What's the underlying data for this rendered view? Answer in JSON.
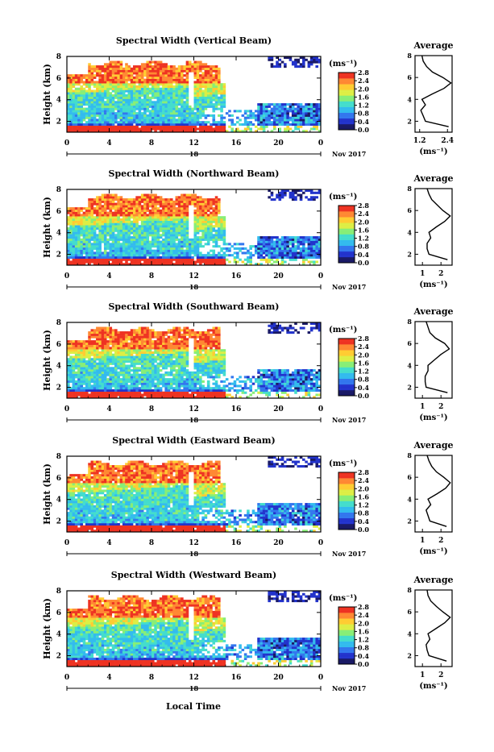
{
  "figure": {
    "xlabel": "Local Time",
    "date_label": "Nov 2017",
    "day_marker": "18",
    "ylabel": "Height (km)",
    "colorbar_unit": "(ms⁻¹)",
    "avg_title": "Average",
    "avg_unit": "(ms⁻¹)"
  },
  "colormap": {
    "name": "jet",
    "stops": [
      "#1a1a66",
      "#2233cc",
      "#3377ee",
      "#33bbee",
      "#44ddcc",
      "#88ee77",
      "#ddee44",
      "#ffcc33",
      "#ff8833",
      "#ee3322"
    ]
  },
  "chart_data": [
    {
      "type": "heatmap",
      "title": "Spectral Width (Vertical Beam)",
      "x_ticks": [
        "0",
        "4",
        "8",
        "12",
        "16",
        "20",
        "0"
      ],
      "y_ticks": [
        "2",
        "4",
        "6",
        "8"
      ],
      "xlim_hours": [
        0,
        24
      ],
      "ylim_km": [
        1,
        8
      ],
      "colorbar_ticks": [
        "0.0",
        "0.4",
        "0.8",
        "1.2",
        "1.6",
        "2.0",
        "2.4",
        "2.8"
      ],
      "clim": [
        0,
        2.8
      ],
      "profile_xticks": [
        "1.2",
        "2.4"
      ],
      "profile_xlim": [
        1.0,
        2.6
      ],
      "profile": {
        "height_km": [
          1.5,
          2.0,
          2.5,
          3.0,
          3.5,
          4.0,
          4.5,
          5.0,
          5.5,
          6.0,
          6.5,
          7.0,
          7.5,
          8.0
        ],
        "value": [
          2.45,
          1.45,
          1.35,
          1.25,
          1.45,
          1.3,
          1.75,
          2.25,
          2.55,
          2.2,
          1.75,
          1.5,
          1.35,
          1.3
        ]
      }
    },
    {
      "type": "heatmap",
      "title": "Spectral Width (Northward Beam)",
      "x_ticks": [
        "0",
        "4",
        "8",
        "12",
        "16",
        "20",
        "0"
      ],
      "y_ticks": [
        "2",
        "4",
        "6",
        "8"
      ],
      "xlim_hours": [
        0,
        24
      ],
      "ylim_km": [
        1,
        8
      ],
      "colorbar_ticks": [
        "0.0",
        "0.4",
        "0.8",
        "1.2",
        "1.6",
        "2.0",
        "2.4",
        "2.8"
      ],
      "clim": [
        0,
        2.8
      ],
      "profile_xticks": [
        "1",
        "2"
      ],
      "profile_xlim": [
        0.6,
        2.6
      ],
      "profile": {
        "height_km": [
          1.5,
          2.0,
          2.5,
          3.0,
          3.5,
          4.0,
          4.5,
          5.0,
          5.5,
          6.0,
          6.5,
          7.0,
          7.5,
          8.0
        ],
        "value": [
          2.35,
          1.35,
          1.25,
          1.25,
          1.45,
          1.35,
          1.75,
          2.2,
          2.5,
          2.1,
          1.8,
          1.5,
          1.35,
          1.25
        ]
      }
    },
    {
      "type": "heatmap",
      "title": "Spectral Width (Southward Beam)",
      "x_ticks": [
        "0",
        "4",
        "8",
        "12",
        "16",
        "20",
        "0"
      ],
      "y_ticks": [
        "2",
        "4",
        "6",
        "8"
      ],
      "xlim_hours": [
        0,
        24
      ],
      "ylim_km": [
        1,
        8
      ],
      "colorbar_ticks": [
        "0.0",
        "0.4",
        "0.8",
        "1.2",
        "1.6",
        "2.0",
        "2.4",
        "2.8"
      ],
      "clim": [
        0,
        2.8
      ],
      "profile_xticks": [
        "1",
        "2"
      ],
      "profile_xlim": [
        0.6,
        2.6
      ],
      "profile": {
        "height_km": [
          1.5,
          2.0,
          2.5,
          3.0,
          3.5,
          4.0,
          4.5,
          5.0,
          5.5,
          6.0,
          6.5,
          7.0,
          7.5,
          8.0
        ],
        "value": [
          2.35,
          1.2,
          1.15,
          1.15,
          1.3,
          1.3,
          1.65,
          2.0,
          2.45,
          2.2,
          1.7,
          1.4,
          1.3,
          1.2
        ]
      }
    },
    {
      "type": "heatmap",
      "title": "Spectral Width (Eastward Beam)",
      "x_ticks": [
        "0",
        "4",
        "8",
        "12",
        "16",
        "20",
        "0"
      ],
      "y_ticks": [
        "2",
        "4",
        "6",
        "8"
      ],
      "xlim_hours": [
        0,
        24
      ],
      "ylim_km": [
        1,
        8
      ],
      "colorbar_ticks": [
        "0.0",
        "0.4",
        "0.8",
        "1.2",
        "1.6",
        "2.0",
        "2.4",
        "2.8"
      ],
      "clim": [
        0,
        2.8
      ],
      "profile_xticks": [
        "1",
        "2"
      ],
      "profile_xlim": [
        0.6,
        2.6
      ],
      "profile": {
        "height_km": [
          1.5,
          2.0,
          2.5,
          3.0,
          3.5,
          4.0,
          4.5,
          5.0,
          5.5,
          6.0,
          6.5,
          7.0,
          7.5,
          8.0
        ],
        "value": [
          2.3,
          1.4,
          1.3,
          1.2,
          1.45,
          1.3,
          1.8,
          2.25,
          2.5,
          2.15,
          1.75,
          1.5,
          1.35,
          1.25
        ]
      }
    },
    {
      "type": "heatmap",
      "title": "Spectral Width (Westward Beam)",
      "x_ticks": [
        "0",
        "4",
        "8",
        "12",
        "16",
        "20",
        "0"
      ],
      "y_ticks": [
        "2",
        "4",
        "6",
        "8"
      ],
      "xlim_hours": [
        0,
        24
      ],
      "ylim_km": [
        1,
        8
      ],
      "colorbar_ticks": [
        "0.0",
        "0.4",
        "0.8",
        "1.2",
        "1.6",
        "2.0",
        "2.4",
        "2.8"
      ],
      "clim": [
        0,
        2.8
      ],
      "profile_xticks": [
        "1",
        "2"
      ],
      "profile_xlim": [
        0.6,
        2.6
      ],
      "profile": {
        "height_km": [
          1.5,
          2.0,
          2.5,
          3.0,
          3.5,
          4.0,
          4.5,
          5.0,
          5.5,
          6.0,
          6.5,
          7.0,
          7.5,
          8.0
        ],
        "value": [
          2.3,
          1.35,
          1.25,
          1.2,
          1.4,
          1.3,
          1.75,
          2.2,
          2.5,
          2.1,
          1.75,
          1.45,
          1.3,
          1.25
        ]
      }
    }
  ]
}
